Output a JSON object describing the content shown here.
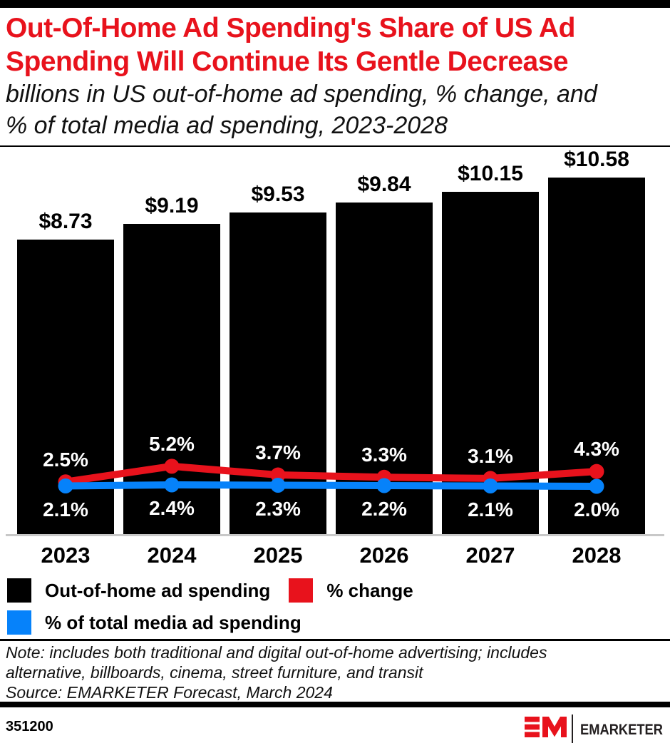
{
  "page": {
    "background": "#FFFFFF",
    "accent_red": "#E8121C",
    "accent_blue": "#0682FA",
    "bar_black": "#000000"
  },
  "header": {
    "title_lines": [
      "Out-Of-Home Ad Spending's Share of US Ad",
      "Spending Will Continue Its Gentle Decrease"
    ],
    "subtitle_lines": [
      "billions in US out-of-home ad spending, % change, and",
      "% of total media ad spending, 2023-2028"
    ]
  },
  "chart_data": {
    "type": "bar",
    "title": "Out-Of-Home Ad Spending's Share of US Ad Spending Will Continue Its Gentle Decrease",
    "subtitle": "billions in US out-of-home ad spending, % change, and % of total media ad spending, 2023-2028",
    "categories": [
      "2023",
      "2024",
      "2025",
      "2026",
      "2027",
      "2028"
    ],
    "series": [
      {
        "name": "Out-of-home ad spending",
        "type": "bar",
        "unit": "billions USD",
        "color": "#000000",
        "values": [
          8.73,
          9.19,
          9.53,
          9.84,
          10.15,
          10.58
        ],
        "labels": [
          "$8.73",
          "$9.19",
          "$9.53",
          "$9.84",
          "$10.15",
          "$10.58"
        ]
      },
      {
        "name": "% change",
        "type": "line",
        "unit": "%",
        "color": "#E8121C",
        "values": [
          2.5,
          5.2,
          3.7,
          3.3,
          3.1,
          4.3
        ],
        "labels": [
          "2.5%",
          "5.2%",
          "3.7%",
          "3.3%",
          "3.1%",
          "4.3%"
        ]
      },
      {
        "name": "% of total media ad spending",
        "type": "line",
        "unit": "%",
        "color": "#0682FA",
        "values": [
          2.1,
          2.4,
          2.3,
          2.2,
          2.1,
          2.0
        ],
        "labels": [
          "2.1%",
          "2.4%",
          "2.3%",
          "2.2%",
          "2.1%",
          "2.0%"
        ]
      }
    ],
    "xlabel": "",
    "ylabel": "",
    "grid": false,
    "legend_position": "bottom"
  },
  "legend": {
    "items": [
      {
        "label": "Out-of-home ad spending",
        "color": "#000000"
      },
      {
        "label": "% change",
        "color": "#E8121C"
      },
      {
        "label": "% of total media ad spending",
        "color": "#0682FA"
      }
    ]
  },
  "notes": {
    "note_lines": [
      "Note: includes both traditional and digital out-of-home advertising; includes",
      "alternative, billboards, cinema, street furniture, and transit"
    ],
    "source": "Source: EMARKETER Forecast, March 2024"
  },
  "footer": {
    "chart_id": "351200",
    "brand": "EMARKETER",
    "logo_monogram": "EM"
  }
}
